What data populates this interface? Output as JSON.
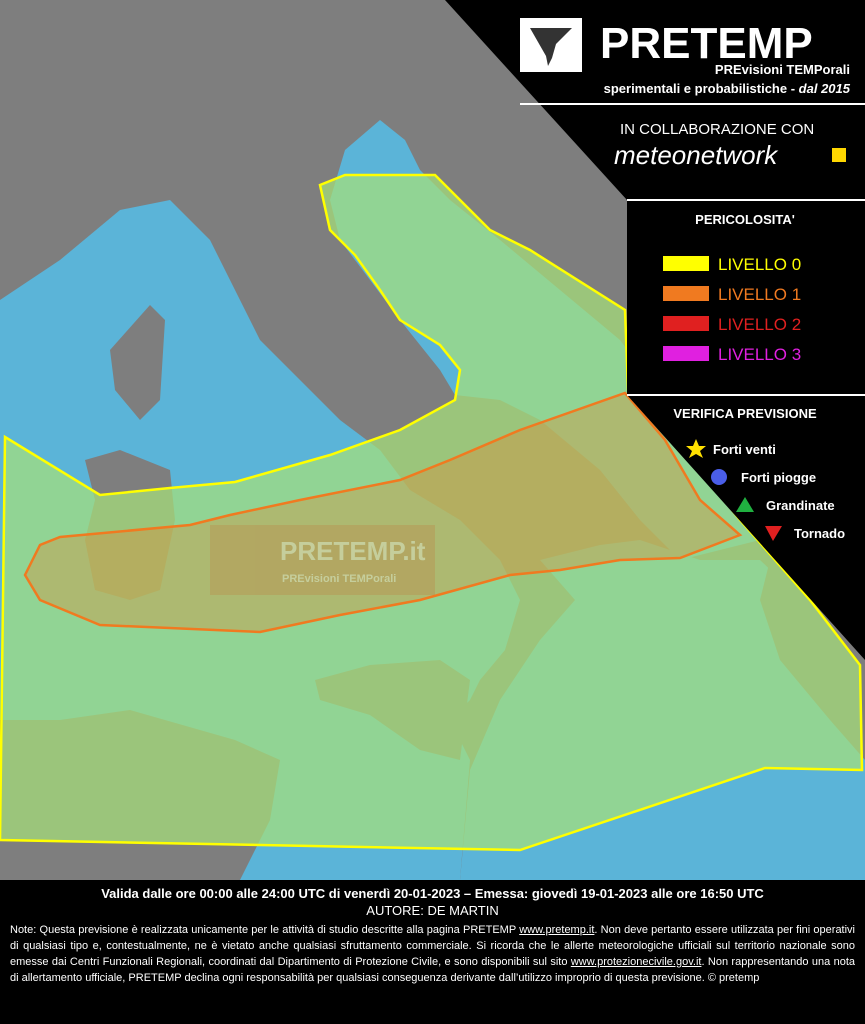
{
  "header": {
    "title": "PRETEMP",
    "subtitle": "PREvisioni TEMPorali",
    "tagline": "sperimentali e probabilistiche - ",
    "since": "dal 2015"
  },
  "collaboration": {
    "label": "IN COLLABORAZIONE CON",
    "partner": "meteonetwork"
  },
  "legend": {
    "title": "PERICOLOSITA'",
    "levels": [
      {
        "label": "LIVELLO 0",
        "color": "#ffff00"
      },
      {
        "label": "LIVELLO 1",
        "color": "#f07a20"
      },
      {
        "label": "LIVELLO 2",
        "color": "#e02020"
      },
      {
        "label": "LIVELLO 3",
        "color": "#e020e0"
      }
    ]
  },
  "verification": {
    "title": "VERIFICA PREVISIONE",
    "items": [
      "Forti venti",
      "Forti piogge",
      "Grandinate",
      "Tornado"
    ]
  },
  "watermark": {
    "title": "PRETEMP.it",
    "subtitle": "PREvisioni TEMPorali"
  },
  "footer": {
    "validity": "Valida dalle ore 00:00 alle 24:00 UTC di venerdì 20-01-2023 – Emessa: giovedì 19-01-2023 alle ore 16:50 UTC",
    "author": "AUTORE: DE MARTIN",
    "note": [
      "Note: Questa previsione è realizzata unicamente per le attività di studio descritte alla pagina PRETEMP ",
      "www.pretemp.it",
      ". Non deve pertanto essere utilizzata per fini operativi di qualsiasi tipo e, contestualmente, ne è vietato anche qualsiasi sfruttamento commerciale. Si ricorda che le allerte meteorologiche ufficiali sul territorio nazionale sono emesse dai Centri Funzionali Regionali, coordinati dal Dipartimento di Protezione Civile, e sono disponibili sul sito ",
      "www.protezionecivile.gov.it",
      ". Non rappresentando una nota di allertamento ufficiale, PRETEMP declina ogni responsabilità per qualsiasi conseguenza derivante dall’utilizzo improprio di questa previsione.  © pretemp"
    ]
  }
}
